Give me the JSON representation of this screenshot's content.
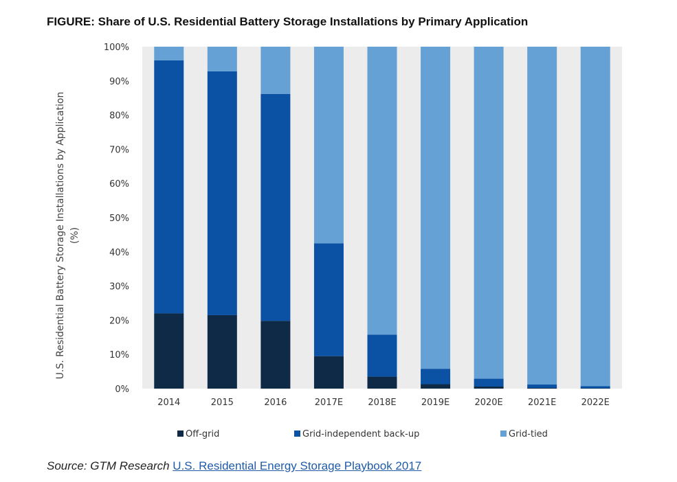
{
  "figure": {
    "title": "FIGURE: Share of U.S. Residential Battery Storage Installations by Primary Application",
    "source_prefix": "Source: GTM Research",
    "source_link": "U.S. Residential Energy Storage Playbook 2017"
  },
  "chart_data": {
    "type": "bar",
    "stacked": true,
    "categories": [
      "2014",
      "2015",
      "2016",
      "2017E",
      "2018E",
      "2019E",
      "2020E",
      "2021E",
      "2022E"
    ],
    "series": [
      {
        "name": "Off-grid",
        "color": "#0e2a47",
        "values": [
          22,
          21.5,
          19.8,
          9.5,
          3.5,
          1.3,
          0.6,
          0.2,
          0.1
        ]
      },
      {
        "name": "Grid-independent back-up",
        "color": "#0c52a4",
        "values": [
          74,
          71.3,
          66.4,
          33,
          12.3,
          4.5,
          2.3,
          1,
          0.6
        ]
      },
      {
        "name": "Grid-tied",
        "color": "#65a1d4",
        "values": [
          4,
          7.2,
          13.8,
          57.5,
          84.2,
          94.2,
          97.1,
          98.8,
          99.3
        ]
      }
    ],
    "yticks": [
      "0%",
      "10%",
      "20%",
      "30%",
      "40%",
      "50%",
      "60%",
      "70%",
      "80%",
      "90%",
      "100%"
    ],
    "ylabel_lines": [
      "U.S. Residential Battery Storage Installations by Application",
      "(%)"
    ],
    "xlabel": "",
    "ylim": [
      0,
      100
    ],
    "legend_position": "bottom",
    "grid": false,
    "plot_background": "#ececec"
  }
}
